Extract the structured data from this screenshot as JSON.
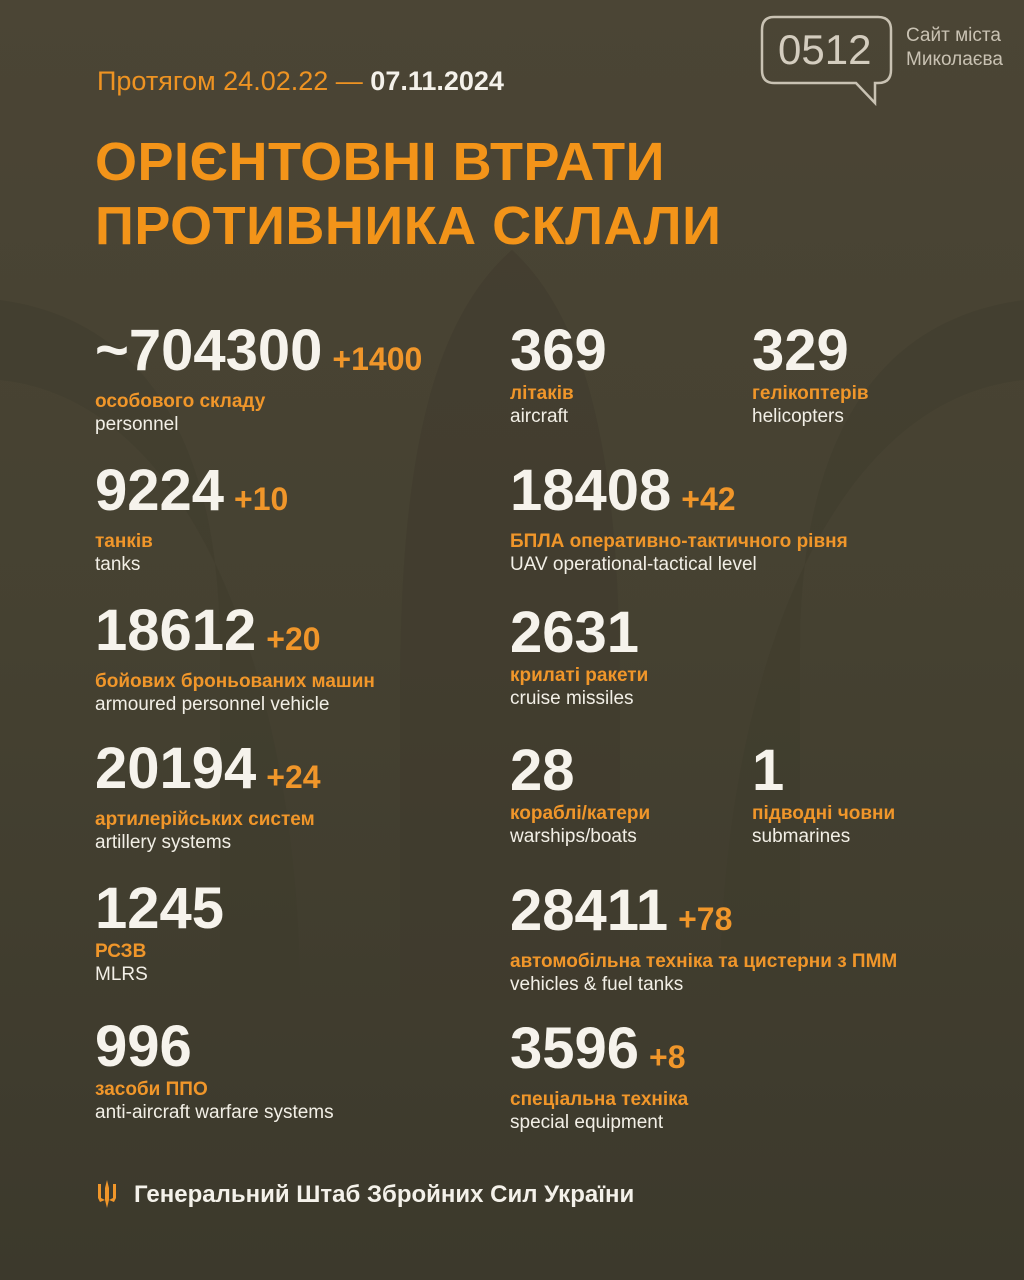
{
  "header": {
    "period_prefix": "Протягом 24.02.22 —",
    "period_date": "07.11.2024",
    "title_line1": "ОРІЄНТОВНІ ВТРАТИ",
    "title_line2": "ПРОТИВНИКА СКЛАЛИ"
  },
  "logo": {
    "number": "0512",
    "line1": "Сайт міста",
    "line2": "Миколаєва"
  },
  "colors": {
    "accent": "#f39419",
    "background": "#474233",
    "text": "#f2efe6"
  },
  "items": [
    {
      "value": "~704300",
      "delta": "+1400",
      "ua": "особового складу",
      "en": "personnel"
    },
    {
      "value": "369",
      "delta": "",
      "ua": "літаків",
      "en": "aircraft"
    },
    {
      "value": "329",
      "delta": "",
      "ua": "гелікоптерів",
      "en": "helicopters"
    },
    {
      "value": "9224",
      "delta": "+10",
      "ua": "танків",
      "en": "tanks"
    },
    {
      "value": "18408",
      "delta": "+42",
      "ua": "БПЛА оперативно-тактичного рівня",
      "en": "UAV operational-tactical level"
    },
    {
      "value": "18612",
      "delta": "+20",
      "ua": "бойових броньованих машин",
      "en": "armoured personnel vehicle"
    },
    {
      "value": "2631",
      "delta": "",
      "ua": "крилаті ракети",
      "en": "cruise missiles"
    },
    {
      "value": "20194",
      "delta": "+24",
      "ua": "артилерійських систем",
      "en": "artillery systems"
    },
    {
      "value": "28",
      "delta": "",
      "ua": "кораблі/катери",
      "en": "warships/boats"
    },
    {
      "value": "1",
      "delta": "",
      "ua": "підводні човни",
      "en": "submarines"
    },
    {
      "value": "1245",
      "delta": "",
      "ua": "РСЗВ",
      "en": "MLRS"
    },
    {
      "value": "28411",
      "delta": "+78",
      "ua": "автомобільна техніка та цистерни з ПММ",
      "en": "vehicles & fuel tanks"
    },
    {
      "value": "996",
      "delta": "",
      "ua": "засоби ППО",
      "en": "anti-aircraft warfare systems"
    },
    {
      "value": "3596",
      "delta": "+8",
      "ua": "спеціальна техніка",
      "en": "special equipment"
    }
  ],
  "footer": {
    "text": "Генеральний Штаб Збройних Сил України",
    "icon": "trident-icon"
  }
}
